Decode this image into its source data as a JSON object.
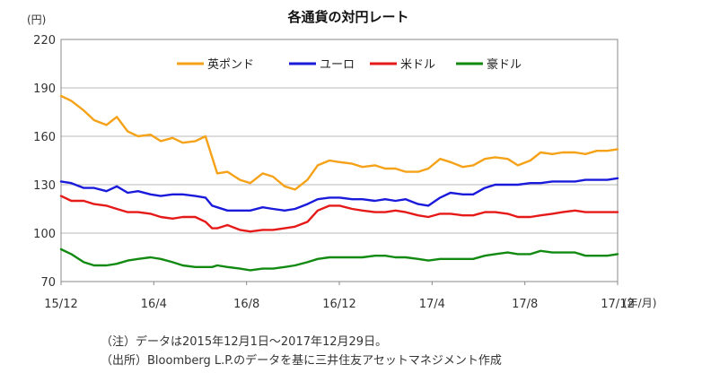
{
  "chart_data": {
    "type": "line",
    "title": "各通貨の対円レート",
    "ylabel": "(円)",
    "xlabel": "(年/月)",
    "ylim": [
      70,
      220
    ],
    "yticks": [
      70,
      100,
      130,
      160,
      190,
      220
    ],
    "grid": true,
    "legend_position": "top-right",
    "x_ticks": [
      "15/12",
      "16/4",
      "16/8",
      "16/12",
      "17/4",
      "17/8",
      "17/12"
    ],
    "x": [
      "2015-12-01",
      "2015-12-15",
      "2016-01-01",
      "2016-01-15",
      "2016-02-01",
      "2016-02-15",
      "2016-03-01",
      "2016-03-15",
      "2016-04-01",
      "2016-04-15",
      "2016-05-01",
      "2016-05-15",
      "2016-06-01",
      "2016-06-15",
      "2016-06-24",
      "2016-07-01",
      "2016-07-15",
      "2016-08-01",
      "2016-08-15",
      "2016-09-01",
      "2016-09-15",
      "2016-10-01",
      "2016-10-15",
      "2016-11-01",
      "2016-11-15",
      "2016-12-01",
      "2016-12-15",
      "2017-01-01",
      "2017-01-15",
      "2017-02-01",
      "2017-02-15",
      "2017-03-01",
      "2017-03-15",
      "2017-04-01",
      "2017-04-15",
      "2017-05-01",
      "2017-05-15",
      "2017-06-01",
      "2017-06-15",
      "2017-07-01",
      "2017-07-15",
      "2017-08-01",
      "2017-08-15",
      "2017-09-01",
      "2017-09-15",
      "2017-10-01",
      "2017-10-15",
      "2017-11-01",
      "2017-11-15",
      "2017-12-01",
      "2017-12-15",
      "2017-12-29"
    ],
    "series": [
      {
        "name": "英ポンド",
        "color": "#f5a219",
        "values": [
          185,
          182,
          176,
          170,
          167,
          172,
          163,
          160,
          161,
          157,
          159,
          156,
          157,
          160,
          147,
          137,
          138,
          133,
          131,
          137,
          135,
          129,
          127,
          133,
          142,
          145,
          144,
          143,
          141,
          142,
          140,
          140,
          138,
          138,
          140,
          146,
          144,
          141,
          142,
          146,
          147,
          146,
          142,
          145,
          150,
          149,
          150,
          150,
          149,
          151,
          151,
          152
        ]
      },
      {
        "name": "ユーロ",
        "color": "#1a1adb",
        "values": [
          132,
          131,
          128,
          128,
          126,
          129,
          125,
          126,
          124,
          123,
          124,
          124,
          123,
          122,
          117,
          116,
          114,
          114,
          114,
          116,
          115,
          114,
          115,
          118,
          121,
          122,
          122,
          121,
          121,
          120,
          121,
          120,
          121,
          118,
          117,
          122,
          125,
          124,
          124,
          128,
          130,
          130,
          130,
          131,
          131,
          132,
          132,
          132,
          133,
          133,
          133,
          134
        ]
      },
      {
        "name": "米ドル",
        "color": "#e61919",
        "values": [
          123,
          120,
          120,
          118,
          117,
          115,
          113,
          113,
          112,
          110,
          109,
          110,
          110,
          107,
          103,
          103,
          105,
          102,
          101,
          102,
          102,
          103,
          104,
          107,
          114,
          117,
          117,
          115,
          114,
          113,
          113,
          114,
          113,
          111,
          110,
          112,
          112,
          111,
          111,
          113,
          113,
          112,
          110,
          110,
          111,
          112,
          113,
          114,
          113,
          113,
          113,
          113
        ]
      },
      {
        "name": "豪ドル",
        "color": "#128a12",
        "values": [
          90,
          87,
          82,
          80,
          80,
          81,
          83,
          84,
          85,
          84,
          82,
          80,
          79,
          79,
          79,
          80,
          79,
          78,
          77,
          78,
          78,
          79,
          80,
          82,
          84,
          85,
          85,
          85,
          85,
          86,
          86,
          85,
          85,
          84,
          83,
          84,
          84,
          84,
          84,
          86,
          87,
          88,
          87,
          87,
          89,
          88,
          88,
          88,
          86,
          86,
          86,
          87
        ]
      }
    ]
  },
  "notes": [
    "（注）データは2015年12月1日～2017年12月29日。",
    "（出所）Bloomberg L.P.のデータを基に三井住友アセットマネジメント作成"
  ]
}
